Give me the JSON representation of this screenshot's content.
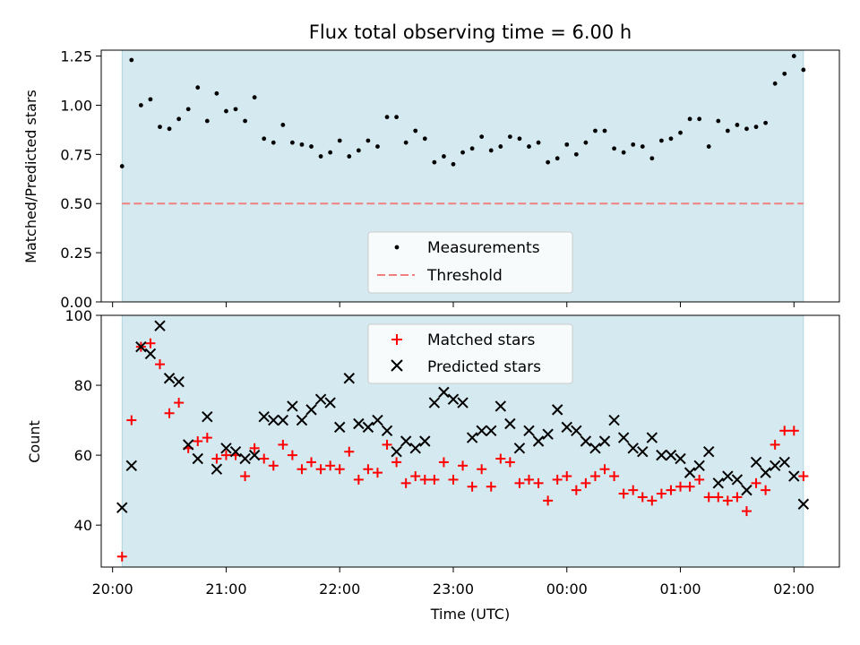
{
  "chart_data": [
    {
      "type": "scatter",
      "title": "Flux total observing time = 6.00 h",
      "ylabel": "Matched/Predicted stars",
      "xlabel": "",
      "xlim": [
        "19:54",
        "02:24"
      ],
      "ylim": [
        0,
        1.28
      ],
      "yticks": [
        0.0,
        0.25,
        0.5,
        0.75,
        1.0,
        1.25
      ],
      "ytick_labels": [
        "0.00",
        "0.25",
        "0.50",
        "0.75",
        "1.00",
        "1.25"
      ],
      "shaded_span": [
        "20:05",
        "02:05"
      ],
      "legend": {
        "placement": "lower-center",
        "entries": [
          "Measurements",
          "Threshold"
        ]
      },
      "series": [
        {
          "name": "Measurements",
          "marker": "dot",
          "color": "#000000",
          "values": [
            0.69,
            1.23,
            1.0,
            1.03,
            0.89,
            0.88,
            0.93,
            0.98,
            1.09,
            0.92,
            1.06,
            0.97,
            0.98,
            0.92,
            1.04,
            0.83,
            0.81,
            0.9,
            0.81,
            0.8,
            0.79,
            0.74,
            0.76,
            0.82,
            0.74,
            0.77,
            0.82,
            0.79,
            0.94,
            0.94,
            0.81,
            0.87,
            0.83,
            0.71,
            0.74,
            0.7,
            0.76,
            0.78,
            0.84,
            0.77,
            0.79,
            0.84,
            0.83,
            0.79,
            0.81,
            0.71,
            0.73,
            0.8,
            0.75,
            0.81,
            0.87,
            0.87,
            0.78,
            0.76,
            0.8,
            0.79,
            0.73,
            0.82,
            0.83,
            0.86,
            0.93,
            0.93,
            0.79,
            0.92,
            0.87,
            0.9,
            0.88,
            0.89,
            0.91,
            1.11,
            1.16,
            1.25,
            1.18
          ]
        },
        {
          "name": "Threshold",
          "marker": "dashed-line",
          "color": "#f08080",
          "constant": 0.5
        }
      ]
    },
    {
      "type": "scatter",
      "title": "",
      "ylabel": "Count",
      "xlabel": "Time (UTC)",
      "xlim": [
        "19:54",
        "02:24"
      ],
      "ylim": [
        28,
        100
      ],
      "yticks": [
        40,
        60,
        80,
        100
      ],
      "ytick_labels": [
        "40",
        "60",
        "80",
        "100"
      ],
      "xticks": [
        "20:00",
        "21:00",
        "22:00",
        "23:00",
        "00:00",
        "01:00",
        "02:00"
      ],
      "shaded_span": [
        "20:05",
        "02:05"
      ],
      "legend": {
        "placement": "upper-center",
        "entries": [
          "Matched stars",
          "Predicted stars"
        ]
      },
      "series": [
        {
          "name": "Matched stars",
          "marker": "plus",
          "color": "#ff0000",
          "values": [
            31,
            70,
            91,
            92,
            86,
            72,
            75,
            62,
            64,
            65,
            59,
            60,
            60,
            54,
            62,
            59,
            57,
            63,
            60,
            56,
            58,
            56,
            57,
            56,
            61,
            53,
            56,
            55,
            63,
            58,
            52,
            54,
            53,
            53,
            58,
            53,
            57,
            51,
            56,
            51,
            59,
            58,
            52,
            53,
            52,
            47,
            53,
            54,
            50,
            52,
            54,
            56,
            54,
            49,
            50,
            48,
            47,
            49,
            50,
            51,
            51,
            53,
            48,
            48,
            47,
            48,
            44,
            52,
            50,
            63,
            67,
            67,
            54
          ]
        },
        {
          "name": "Predicted stars",
          "marker": "x",
          "color": "#000000",
          "values": [
            45,
            57,
            91,
            89,
            97,
            82,
            81,
            63,
            59,
            71,
            56,
            62,
            61,
            59,
            60,
            71,
            70,
            70,
            74,
            70,
            73,
            76,
            75,
            68,
            82,
            69,
            68,
            70,
            67,
            61,
            64,
            62,
            64,
            75,
            78,
            76,
            75,
            65,
            67,
            67,
            74,
            69,
            62,
            67,
            64,
            66,
            73,
            68,
            67,
            64,
            62,
            64,
            70,
            65,
            62,
            61,
            65,
            60,
            60,
            59,
            55,
            57,
            61,
            52,
            54,
            53,
            50,
            58,
            55,
            57,
            58,
            54,
            46
          ]
        }
      ]
    }
  ]
}
